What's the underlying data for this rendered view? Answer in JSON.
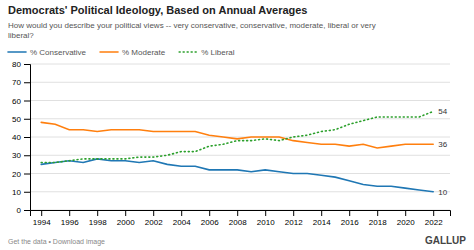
{
  "chart_data": {
    "type": "line",
    "title": "Democrats' Political Ideology, Based on Annual Averages",
    "subtitle": "How would you describe your political views -- very conservative, conservative, moderate, liberal or very\nliberal?",
    "x": [
      1994,
      1995,
      1996,
      1997,
      1998,
      1999,
      2000,
      2001,
      2002,
      2003,
      2004,
      2005,
      2006,
      2007,
      2008,
      2009,
      2010,
      2011,
      2012,
      2013,
      2014,
      2015,
      2016,
      2017,
      2018,
      2019,
      2020,
      2021,
      2022
    ],
    "series": [
      {
        "name": "% Conservative",
        "line_style": "solid",
        "values": [
          25,
          26,
          27,
          26,
          28,
          27,
          27,
          26,
          27,
          25,
          24,
          24,
          22,
          22,
          22,
          21,
          22,
          21,
          20,
          20,
          19,
          18,
          16,
          14,
          13,
          13,
          12,
          11,
          10
        ]
      },
      {
        "name": "% Moderate",
        "line_style": "solid",
        "values": [
          48,
          47,
          44,
          44,
          43,
          44,
          44,
          44,
          43,
          43,
          43,
          43,
          41,
          40,
          39,
          40,
          40,
          40,
          38,
          37,
          36,
          36,
          35,
          36,
          34,
          35,
          36,
          36,
          36
        ]
      },
      {
        "name": "% Liberal",
        "line_style": "dotted",
        "values": [
          26,
          26,
          27,
          28,
          28,
          28,
          28,
          29,
          29,
          30,
          32,
          32,
          35,
          36,
          38,
          38,
          39,
          38,
          40,
          41,
          43,
          44,
          47,
          49,
          51,
          51,
          51,
          51,
          54
        ]
      }
    ],
    "annotations": [
      {
        "text": "54",
        "x": 2022,
        "y": 54
      },
      {
        "text": "36",
        "x": 2022,
        "y": 36
      },
      {
        "text": "10",
        "x": 2022,
        "y": 10
      }
    ],
    "xlim": [
      1993.2,
      2023.2
    ],
    "xticks": [
      1994,
      1996,
      1998,
      2000,
      2002,
      2004,
      2006,
      2008,
      2010,
      2012,
      2014,
      2016,
      2018,
      2020,
      2022
    ],
    "ylim": [
      0,
      80
    ],
    "yticks": [
      0,
      10,
      20,
      30,
      40,
      50,
      60,
      70,
      80
    ],
    "grid": true,
    "legend": "top",
    "footer": "Get the data • Download image",
    "source": "GALLUP"
  }
}
